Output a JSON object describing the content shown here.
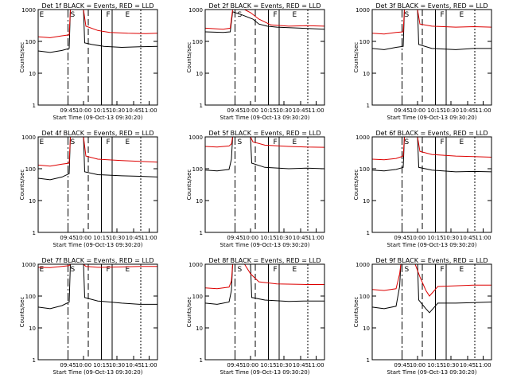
{
  "figure": {
    "ylabel": "Counts/sec",
    "xlabel": "Start Time (09-Oct-13 09:30:20)"
  },
  "chart_data": [
    {
      "type": "line",
      "title": "Det 1f BLACK = Events, RED = LLD",
      "x_ticks": [
        "09:45",
        "10:00",
        "10:15",
        "10:30",
        "10:45",
        "11:00"
      ],
      "y_ticks": [
        "1",
        "10",
        "100",
        "1000"
      ],
      "ylim": [
        1,
        1000
      ],
      "yscale": "log",
      "markers": [
        "E",
        "S",
        "F",
        "E"
      ],
      "series": [
        {
          "name": "Events",
          "color": "#000000",
          "values": [
            [
              0.0,
              50
            ],
            [
              0.1,
              45
            ],
            [
              0.2,
              52
            ],
            [
              0.26,
              60
            ],
            [
              0.27,
              1000
            ],
            [
              0.38,
              1000
            ],
            [
              0.39,
              90
            ],
            [
              0.45,
              80
            ],
            [
              0.55,
              70
            ],
            [
              0.7,
              65
            ],
            [
              0.85,
              68
            ],
            [
              1.0,
              70
            ]
          ]
        },
        {
          "name": "LLD",
          "color": "#dd0000",
          "values": [
            [
              0.0,
              140
            ],
            [
              0.1,
              130
            ],
            [
              0.2,
              150
            ],
            [
              0.26,
              160
            ],
            [
              0.27,
              1000
            ],
            [
              0.38,
              1000
            ],
            [
              0.4,
              300
            ],
            [
              0.5,
              220
            ],
            [
              0.6,
              190
            ],
            [
              0.75,
              180
            ],
            [
              0.9,
              175
            ],
            [
              1.0,
              180
            ]
          ]
        }
      ]
    },
    {
      "type": "line",
      "title": "Det 2f BLACK = Events, RED = LLD",
      "x_ticks": [
        "09:45",
        "10:00",
        "10:15",
        "10:30",
        "10:45",
        "11:00"
      ],
      "y_ticks": [
        "1",
        "10",
        "100",
        "1000"
      ],
      "ylim": [
        1,
        1000
      ],
      "yscale": "log",
      "markers": [
        "S",
        "F",
        "E"
      ],
      "series": [
        {
          "name": "Events",
          "color": "#000000",
          "values": [
            [
              0.0,
              200
            ],
            [
              0.15,
              190
            ],
            [
              0.21,
              200
            ],
            [
              0.23,
              850
            ],
            [
              0.3,
              700
            ],
            [
              0.4,
              500
            ],
            [
              0.45,
              350
            ],
            [
              0.52,
              300
            ],
            [
              0.6,
              280
            ],
            [
              0.8,
              260
            ],
            [
              1.0,
              240
            ]
          ]
        },
        {
          "name": "LLD",
          "color": "#dd0000",
          "values": [
            [
              0.0,
              260
            ],
            [
              0.15,
              240
            ],
            [
              0.21,
              260
            ],
            [
              0.23,
              1000
            ],
            [
              0.33,
              1000
            ],
            [
              0.38,
              800
            ],
            [
              0.45,
              500
            ],
            [
              0.55,
              330
            ],
            [
              0.7,
              300
            ],
            [
              0.85,
              310
            ],
            [
              1.0,
              300
            ]
          ]
        }
      ]
    },
    {
      "type": "line",
      "title": "Det 3f BLACK = Events, RED = LLD",
      "x_ticks": [
        "09:45",
        "10:00",
        "10:15",
        "10:30",
        "10:45",
        "11:00"
      ],
      "y_ticks": [
        "1",
        "10",
        "100",
        "1000"
      ],
      "ylim": [
        1,
        1000
      ],
      "yscale": "log",
      "markers": [
        "S",
        "F",
        "E"
      ],
      "series": [
        {
          "name": "Events",
          "color": "#000000",
          "values": [
            [
              0.0,
              60
            ],
            [
              0.1,
              55
            ],
            [
              0.2,
              65
            ],
            [
              0.26,
              70
            ],
            [
              0.27,
              1000
            ],
            [
              0.38,
              1000
            ],
            [
              0.39,
              80
            ],
            [
              0.5,
              60
            ],
            [
              0.7,
              55
            ],
            [
              0.85,
              60
            ],
            [
              1.0,
              60
            ]
          ]
        },
        {
          "name": "LLD",
          "color": "#dd0000",
          "values": [
            [
              0.0,
              180
            ],
            [
              0.1,
              170
            ],
            [
              0.2,
              190
            ],
            [
              0.26,
              200
            ],
            [
              0.27,
              1000
            ],
            [
              0.38,
              1000
            ],
            [
              0.4,
              350
            ],
            [
              0.5,
              300
            ],
            [
              0.7,
              280
            ],
            [
              0.85,
              290
            ],
            [
              1.0,
              280
            ]
          ]
        }
      ]
    },
    {
      "type": "line",
      "title": "Det 4f BLACK = Events, RED = LLD",
      "x_ticks": [
        "09:45",
        "10:00",
        "10:15",
        "10:30",
        "10:45",
        "11:00"
      ],
      "y_ticks": [
        "1",
        "10",
        "100",
        "1000"
      ],
      "ylim": [
        1,
        1000
      ],
      "yscale": "log",
      "markers": [
        "E",
        "S",
        "F",
        "E"
      ],
      "series": [
        {
          "name": "Events",
          "color": "#000000",
          "values": [
            [
              0.0,
              50
            ],
            [
              0.1,
              45
            ],
            [
              0.2,
              55
            ],
            [
              0.26,
              70
            ],
            [
              0.27,
              1000
            ],
            [
              0.38,
              1000
            ],
            [
              0.39,
              80
            ],
            [
              0.5,
              65
            ],
            [
              0.7,
              60
            ],
            [
              0.85,
              58
            ],
            [
              1.0,
              55
            ]
          ]
        },
        {
          "name": "LLD",
          "color": "#dd0000",
          "values": [
            [
              0.0,
              130
            ],
            [
              0.1,
              120
            ],
            [
              0.2,
              140
            ],
            [
              0.26,
              150
            ],
            [
              0.27,
              1000
            ],
            [
              0.38,
              1000
            ],
            [
              0.4,
              250
            ],
            [
              0.5,
              200
            ],
            [
              0.7,
              180
            ],
            [
              0.85,
              170
            ],
            [
              1.0,
              160
            ]
          ]
        }
      ]
    },
    {
      "type": "line",
      "title": "Det 5f BLACK = Events, RED = LLD",
      "x_ticks": [
        "09:45",
        "10:00",
        "10:15",
        "10:30",
        "10:45",
        "11:00"
      ],
      "y_ticks": [
        "1",
        "10",
        "100",
        "1000"
      ],
      "ylim": [
        1,
        1000
      ],
      "yscale": "log",
      "markers": [
        "S",
        "F",
        "E"
      ],
      "series": [
        {
          "name": "Events",
          "color": "#000000",
          "values": [
            [
              0.0,
              90
            ],
            [
              0.1,
              85
            ],
            [
              0.2,
              95
            ],
            [
              0.22,
              200
            ],
            [
              0.23,
              1000
            ],
            [
              0.38,
              1000
            ],
            [
              0.39,
              150
            ],
            [
              0.5,
              110
            ],
            [
              0.7,
              100
            ],
            [
              0.85,
              105
            ],
            [
              1.0,
              100
            ]
          ]
        },
        {
          "name": "LLD",
          "color": "#dd0000",
          "values": [
            [
              0.0,
              500
            ],
            [
              0.1,
              480
            ],
            [
              0.2,
              520
            ],
            [
              0.22,
              600
            ],
            [
              0.23,
              1000
            ],
            [
              0.38,
              1000
            ],
            [
              0.4,
              700
            ],
            [
              0.5,
              550
            ],
            [
              0.7,
              500
            ],
            [
              0.85,
              480
            ],
            [
              1.0,
              470
            ]
          ]
        }
      ]
    },
    {
      "type": "line",
      "title": "Det 6f BLACK = Events, RED = LLD",
      "x_ticks": [
        "09:45",
        "10:00",
        "10:15",
        "10:30",
        "10:45",
        "11:00"
      ],
      "y_ticks": [
        "1",
        "10",
        "100",
        "1000"
      ],
      "ylim": [
        1,
        1000
      ],
      "yscale": "log",
      "markers": [
        "S",
        "F",
        "E"
      ],
      "series": [
        {
          "name": "Events",
          "color": "#000000",
          "values": [
            [
              0.0,
              90
            ],
            [
              0.1,
              85
            ],
            [
              0.2,
              95
            ],
            [
              0.26,
              110
            ],
            [
              0.27,
              1000
            ],
            [
              0.38,
              1000
            ],
            [
              0.39,
              110
            ],
            [
              0.5,
              90
            ],
            [
              0.7,
              80
            ],
            [
              0.85,
              82
            ],
            [
              1.0,
              80
            ]
          ]
        },
        {
          "name": "LLD",
          "color": "#dd0000",
          "values": [
            [
              0.0,
              200
            ],
            [
              0.1,
              190
            ],
            [
              0.2,
              210
            ],
            [
              0.26,
              250
            ],
            [
              0.27,
              1000
            ],
            [
              0.38,
              1000
            ],
            [
              0.4,
              350
            ],
            [
              0.5,
              280
            ],
            [
              0.7,
              250
            ],
            [
              0.85,
              240
            ],
            [
              1.0,
              230
            ]
          ]
        }
      ]
    },
    {
      "type": "line",
      "title": "Det 7f BLACK = Events, RED = LLD",
      "x_ticks": [
        "09:45",
        "10:00",
        "10:15",
        "10:30",
        "10:45",
        "11:00"
      ],
      "y_ticks": [
        "1",
        "10",
        "100",
        "1000"
      ],
      "ylim": [
        1,
        1000
      ],
      "yscale": "log",
      "markers": [
        "E",
        "S",
        "F",
        "E"
      ],
      "series": [
        {
          "name": "Events",
          "color": "#000000",
          "values": [
            [
              0.0,
              45
            ],
            [
              0.1,
              40
            ],
            [
              0.2,
              50
            ],
            [
              0.26,
              65
            ],
            [
              0.27,
              1000
            ],
            [
              0.38,
              1000
            ],
            [
              0.39,
              90
            ],
            [
              0.5,
              70
            ],
            [
              0.7,
              60
            ],
            [
              0.85,
              55
            ],
            [
              1.0,
              55
            ]
          ]
        },
        {
          "name": "LLD",
          "color": "#dd0000",
          "values": [
            [
              0.0,
              800
            ],
            [
              0.1,
              780
            ],
            [
              0.2,
              850
            ],
            [
              0.26,
              900
            ],
            [
              0.27,
              1000
            ],
            [
              0.38,
              1000
            ],
            [
              0.4,
              850
            ],
            [
              0.5,
              800
            ],
            [
              0.7,
              820
            ],
            [
              0.85,
              850
            ],
            [
              1.0,
              850
            ]
          ]
        }
      ]
    },
    {
      "type": "line",
      "title": "Det 8f BLACK = Events, RED = LLD",
      "x_ticks": [
        "09:45",
        "10:00",
        "10:15",
        "10:30",
        "10:45",
        "11:00"
      ],
      "y_ticks": [
        "1",
        "10",
        "100",
        "1000"
      ],
      "ylim": [
        1,
        1000
      ],
      "yscale": "log",
      "markers": [
        "S",
        "F",
        "E"
      ],
      "series": [
        {
          "name": "Events",
          "color": "#000000",
          "values": [
            [
              0.0,
              60
            ],
            [
              0.1,
              55
            ],
            [
              0.2,
              65
            ],
            [
              0.22,
              150
            ],
            [
              0.23,
              1000
            ],
            [
              0.38,
              1000
            ],
            [
              0.39,
              90
            ],
            [
              0.5,
              75
            ],
            [
              0.7,
              68
            ],
            [
              0.85,
              70
            ],
            [
              1.0,
              70
            ]
          ]
        },
        {
          "name": "LLD",
          "color": "#dd0000",
          "values": [
            [
              0.0,
              180
            ],
            [
              0.1,
              170
            ],
            [
              0.2,
              190
            ],
            [
              0.22,
              300
            ],
            [
              0.23,
              1000
            ],
            [
              0.33,
              1000
            ],
            [
              0.38,
              500
            ],
            [
              0.45,
              280
            ],
            [
              0.6,
              240
            ],
            [
              0.85,
              230
            ],
            [
              1.0,
              230
            ]
          ]
        }
      ]
    },
    {
      "type": "line",
      "title": "Det 9f BLACK = Events, RED = LLD",
      "x_ticks": [
        "09:45",
        "10:00",
        "10:15",
        "10:30",
        "10:45",
        "11:00"
      ],
      "y_ticks": [
        "1",
        "10",
        "100",
        "1000"
      ],
      "ylim": [
        1,
        1000
      ],
      "yscale": "log",
      "markers": [
        "S",
        "F",
        "E"
      ],
      "series": [
        {
          "name": "Events",
          "color": "#000000",
          "values": [
            [
              0.0,
              45
            ],
            [
              0.1,
              40
            ],
            [
              0.2,
              48
            ],
            [
              0.23,
              200
            ],
            [
              0.24,
              1000
            ],
            [
              0.38,
              1000
            ],
            [
              0.39,
              75
            ],
            [
              0.45,
              40
            ],
            [
              0.48,
              30
            ],
            [
              0.55,
              60
            ],
            [
              0.7,
              60
            ],
            [
              0.85,
              62
            ],
            [
              1.0,
              65
            ]
          ]
        },
        {
          "name": "LLD",
          "color": "#dd0000",
          "values": [
            [
              0.0,
              160
            ],
            [
              0.1,
              150
            ],
            [
              0.2,
              170
            ],
            [
              0.23,
              500
            ],
            [
              0.24,
              1000
            ],
            [
              0.36,
              1000
            ],
            [
              0.4,
              400
            ],
            [
              0.45,
              150
            ],
            [
              0.48,
              100
            ],
            [
              0.55,
              200
            ],
            [
              0.7,
              210
            ],
            [
              0.85,
              220
            ],
            [
              1.0,
              220
            ]
          ]
        }
      ]
    }
  ]
}
